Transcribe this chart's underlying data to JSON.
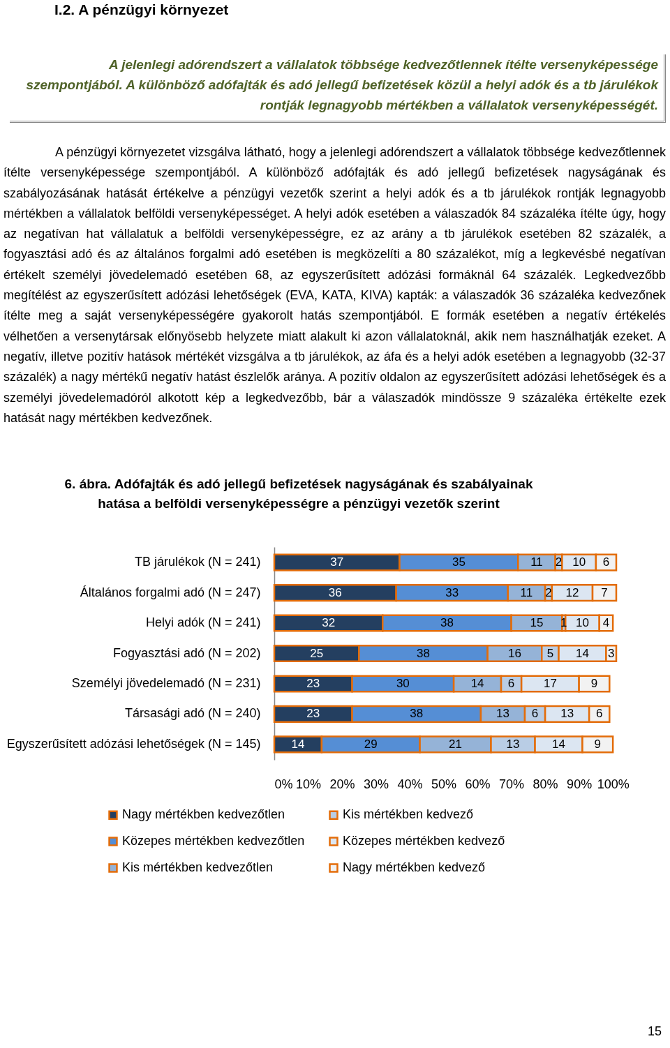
{
  "chart_data": {
    "type": "bar",
    "orientation": "horizontal",
    "stacked": true,
    "data_labels": true,
    "legend": "bottom",
    "grid": false,
    "title": "6. ábra. Adófajták és adó jellegű befizetések nagyságának és szabályainak hatása a belföldi versenyképességre a pénzügyi vezetők szerint",
    "categories": [
      "TB járulékok (N = 241)",
      "Általános forgalmi adó (N = 247)",
      "Helyi adók (N = 241)",
      "Fogyasztási adó (N = 202)",
      "Személyi jövedelemadó (N = 231)",
      "Társasági adó (N = 240)",
      "Egyszerűsített adózási lehetőségek (N = 145)"
    ],
    "series": [
      {
        "name": "Nagy mértékben kedvezőtlen",
        "color": "#243f60",
        "values": [
          37,
          36,
          32,
          25,
          23,
          23,
          14
        ]
      },
      {
        "name": "Közepes mértékben kedvezőtlen",
        "color": "#558ed5",
        "values": [
          35,
          33,
          38,
          38,
          30,
          38,
          29
        ]
      },
      {
        "name": "Kis mértékben kedvezőtlen",
        "color": "#95b3d7",
        "values": [
          11,
          11,
          15,
          16,
          14,
          13,
          21
        ]
      },
      {
        "name": "Kis mértékben kedvező",
        "color": "#b9cde5",
        "values": [
          2,
          2,
          1,
          5,
          6,
          6,
          13
        ]
      },
      {
        "name": "Közepes mértékben kedvező",
        "color": "#dce6f2",
        "values": [
          10,
          12,
          10,
          14,
          17,
          13,
          14
        ]
      },
      {
        "name": "Nagy mértékben kedvező",
        "color": "#f2f2f2",
        "values": [
          6,
          7,
          4,
          3,
          9,
          6,
          9
        ]
      }
    ],
    "xlim": [
      0,
      101
    ],
    "xticks": [
      {
        "value": 0,
        "label": "0%"
      },
      {
        "value": 10,
        "label": "10%"
      },
      {
        "value": 20,
        "label": "20%"
      },
      {
        "value": 30,
        "label": "30%"
      },
      {
        "value": 40,
        "label": "40%"
      },
      {
        "value": 50,
        "label": "50%"
      },
      {
        "value": 60,
        "label": "60%"
      },
      {
        "value": 70,
        "label": "70%"
      },
      {
        "value": 80,
        "label": "80%"
      },
      {
        "value": 90,
        "label": "90%"
      },
      {
        "value": 100,
        "label": "100%"
      }
    ],
    "annotations": [
      "I.2. A pénzügyi környezet",
      "A jelenlegi adórendszert a vállalatok többsége kedvezőtlennek ítélte versenyképessége szempontjából. A különböző adófajták és adó jellegű befizetések közül a helyi adók és a tb járulékok rontják legnagyobb mértékben a vállalatok versenyképességét.",
      "A pénzügyi környezetet vizsgálva látható, hogy a jelenlegi adórendszert a vállalatok többsége kedvezőtlennek ítélte versenyképessége szempontjából. A különböző adófajták és adó jellegű befizetések nagyságának és szabályozásának hatását értékelve a pénzügyi vezetők szerint a helyi adók és a tb járulékok rontják legnagyobb mértékben a vállalatok belföldi versenyképességet. A helyi adók esetében a válaszadók 84 százaléka ítélte úgy, hogy az negatívan hat vállalatuk a belföldi versenyképességre, ez az arány a tb járulékok esetében 82 százalék, a fogyasztási adó és az általános forgalmi adó esetében is megközelíti a 80 százalékot, míg a legkevésbé negatívan értékelt személyi jövedelemadó esetében 68, az egyszerűsített adózási formáknál 64 százalék. Legkedvezőbb megítélést az egyszerűsített adózási lehetőségek (EVA, KATA, KIVA) kapták: a válaszadók 36 százaléka kedvezőnek ítélte meg a saját versenyképességére gyakorolt hatás szempontjából. E formák esetében a negatív értékelés vélhetően a versenytársak előnyösebb helyzete miatt alakult ki azon vállalatoknál, akik nem használhatják ezeket. A negatív, illetve pozitív hatások mértékét vizsgálva a tb járulékok, az áfa és a helyi adók esetében a legnagyobb (32-37 százalék) a nagy mértékű negatív hatást észlelők aránya. A pozitív oldalon az egyszerűsített adózási lehetőségek és a személyi jövedelemadóról alkotott kép a legkedvezőbb, bár a válaszadók mindössze 9 százaléka értékelte ezek hatását nagy mértékben kedvezőnek.",
      "15"
    ]
  }
}
